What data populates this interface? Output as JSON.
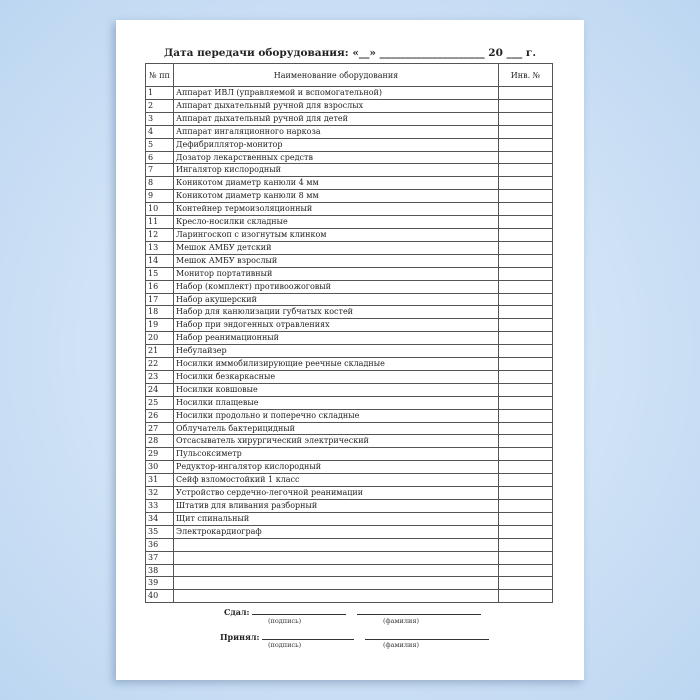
{
  "title": "Дата передачи оборудования: «__» ____________________ 20 ___ г.",
  "table": {
    "headers": [
      "№ пп",
      "Наименование оборудования",
      "Инв. №"
    ],
    "rows": [
      {
        "n": "1",
        "name": "Аппарат ИВЛ (управляемой и вспомогательной)"
      },
      {
        "n": "2",
        "name": "Аппарат дыхательный ручной для взрослых"
      },
      {
        "n": "3",
        "name": "Аппарат дыхательный ручной для детей"
      },
      {
        "n": "4",
        "name": "Аппарат ингаляционного наркоза"
      },
      {
        "n": "5",
        "name": "Дефибриллятор-монитор"
      },
      {
        "n": "6",
        "name": "Дозатор лекарственных средств"
      },
      {
        "n": "7",
        "name": "Ингалятор кислородный"
      },
      {
        "n": "8",
        "name": "Коникотом диаметр канюли 4 мм"
      },
      {
        "n": "9",
        "name": "Коникотом диаметр канюли 8 мм"
      },
      {
        "n": "10",
        "name": "Контейнер термоизоляционный"
      },
      {
        "n": "11",
        "name": "Кресло-носилки складные"
      },
      {
        "n": "12",
        "name": "Ларингоскоп с изогнутым клинком"
      },
      {
        "n": "13",
        "name": "Мешок АМБУ детский"
      },
      {
        "n": "14",
        "name": "Мешок АМБУ взрослый"
      },
      {
        "n": "15",
        "name": "Монитор портативный"
      },
      {
        "n": "16",
        "name": "Набор (комплект) противоожоговый"
      },
      {
        "n": "17",
        "name": "Набор акушерский"
      },
      {
        "n": "18",
        "name": "Набор для канюлизации губчатых костей"
      },
      {
        "n": "19",
        "name": "Набор при эндогенных отравлениях"
      },
      {
        "n": "20",
        "name": "Набор реанимационный"
      },
      {
        "n": "21",
        "name": "Небулайзер"
      },
      {
        "n": "22",
        "name": "Носилки иммобилизирующие реечные складные"
      },
      {
        "n": "23",
        "name": "Носилки безкаркасные"
      },
      {
        "n": "24",
        "name": "Носилки ковшовые"
      },
      {
        "n": "25",
        "name": "Носилки плащевые"
      },
      {
        "n": "26",
        "name": "Носилки продольно и поперечно складные"
      },
      {
        "n": "27",
        "name": "Облучатель бактерицидный"
      },
      {
        "n": "28",
        "name": "Отсасыватель хирургический электрический"
      },
      {
        "n": "29",
        "name": "Пульсоксиметр"
      },
      {
        "n": "30",
        "name": "Редуктор-ингалятор кислородный"
      },
      {
        "n": "31",
        "name": "Сейф взломостойкий 1 класс"
      },
      {
        "n": "32",
        "name": "Устройство сердечно-легочной реанимации"
      },
      {
        "n": "33",
        "name": "Штатив для вливания разборный"
      },
      {
        "n": "34",
        "name": "Щит спинальный"
      },
      {
        "n": "35",
        "name": "Электрокардиограф"
      },
      {
        "n": "36",
        "name": ""
      },
      {
        "n": "37",
        "name": ""
      },
      {
        "n": "38",
        "name": ""
      },
      {
        "n": "39",
        "name": ""
      },
      {
        "n": "40",
        "name": ""
      }
    ]
  },
  "signatures": {
    "handed_label": "Сдал:",
    "received_label": "Принял:",
    "signature_caption": "(подпись)",
    "surname_caption": "(фамилия)"
  }
}
